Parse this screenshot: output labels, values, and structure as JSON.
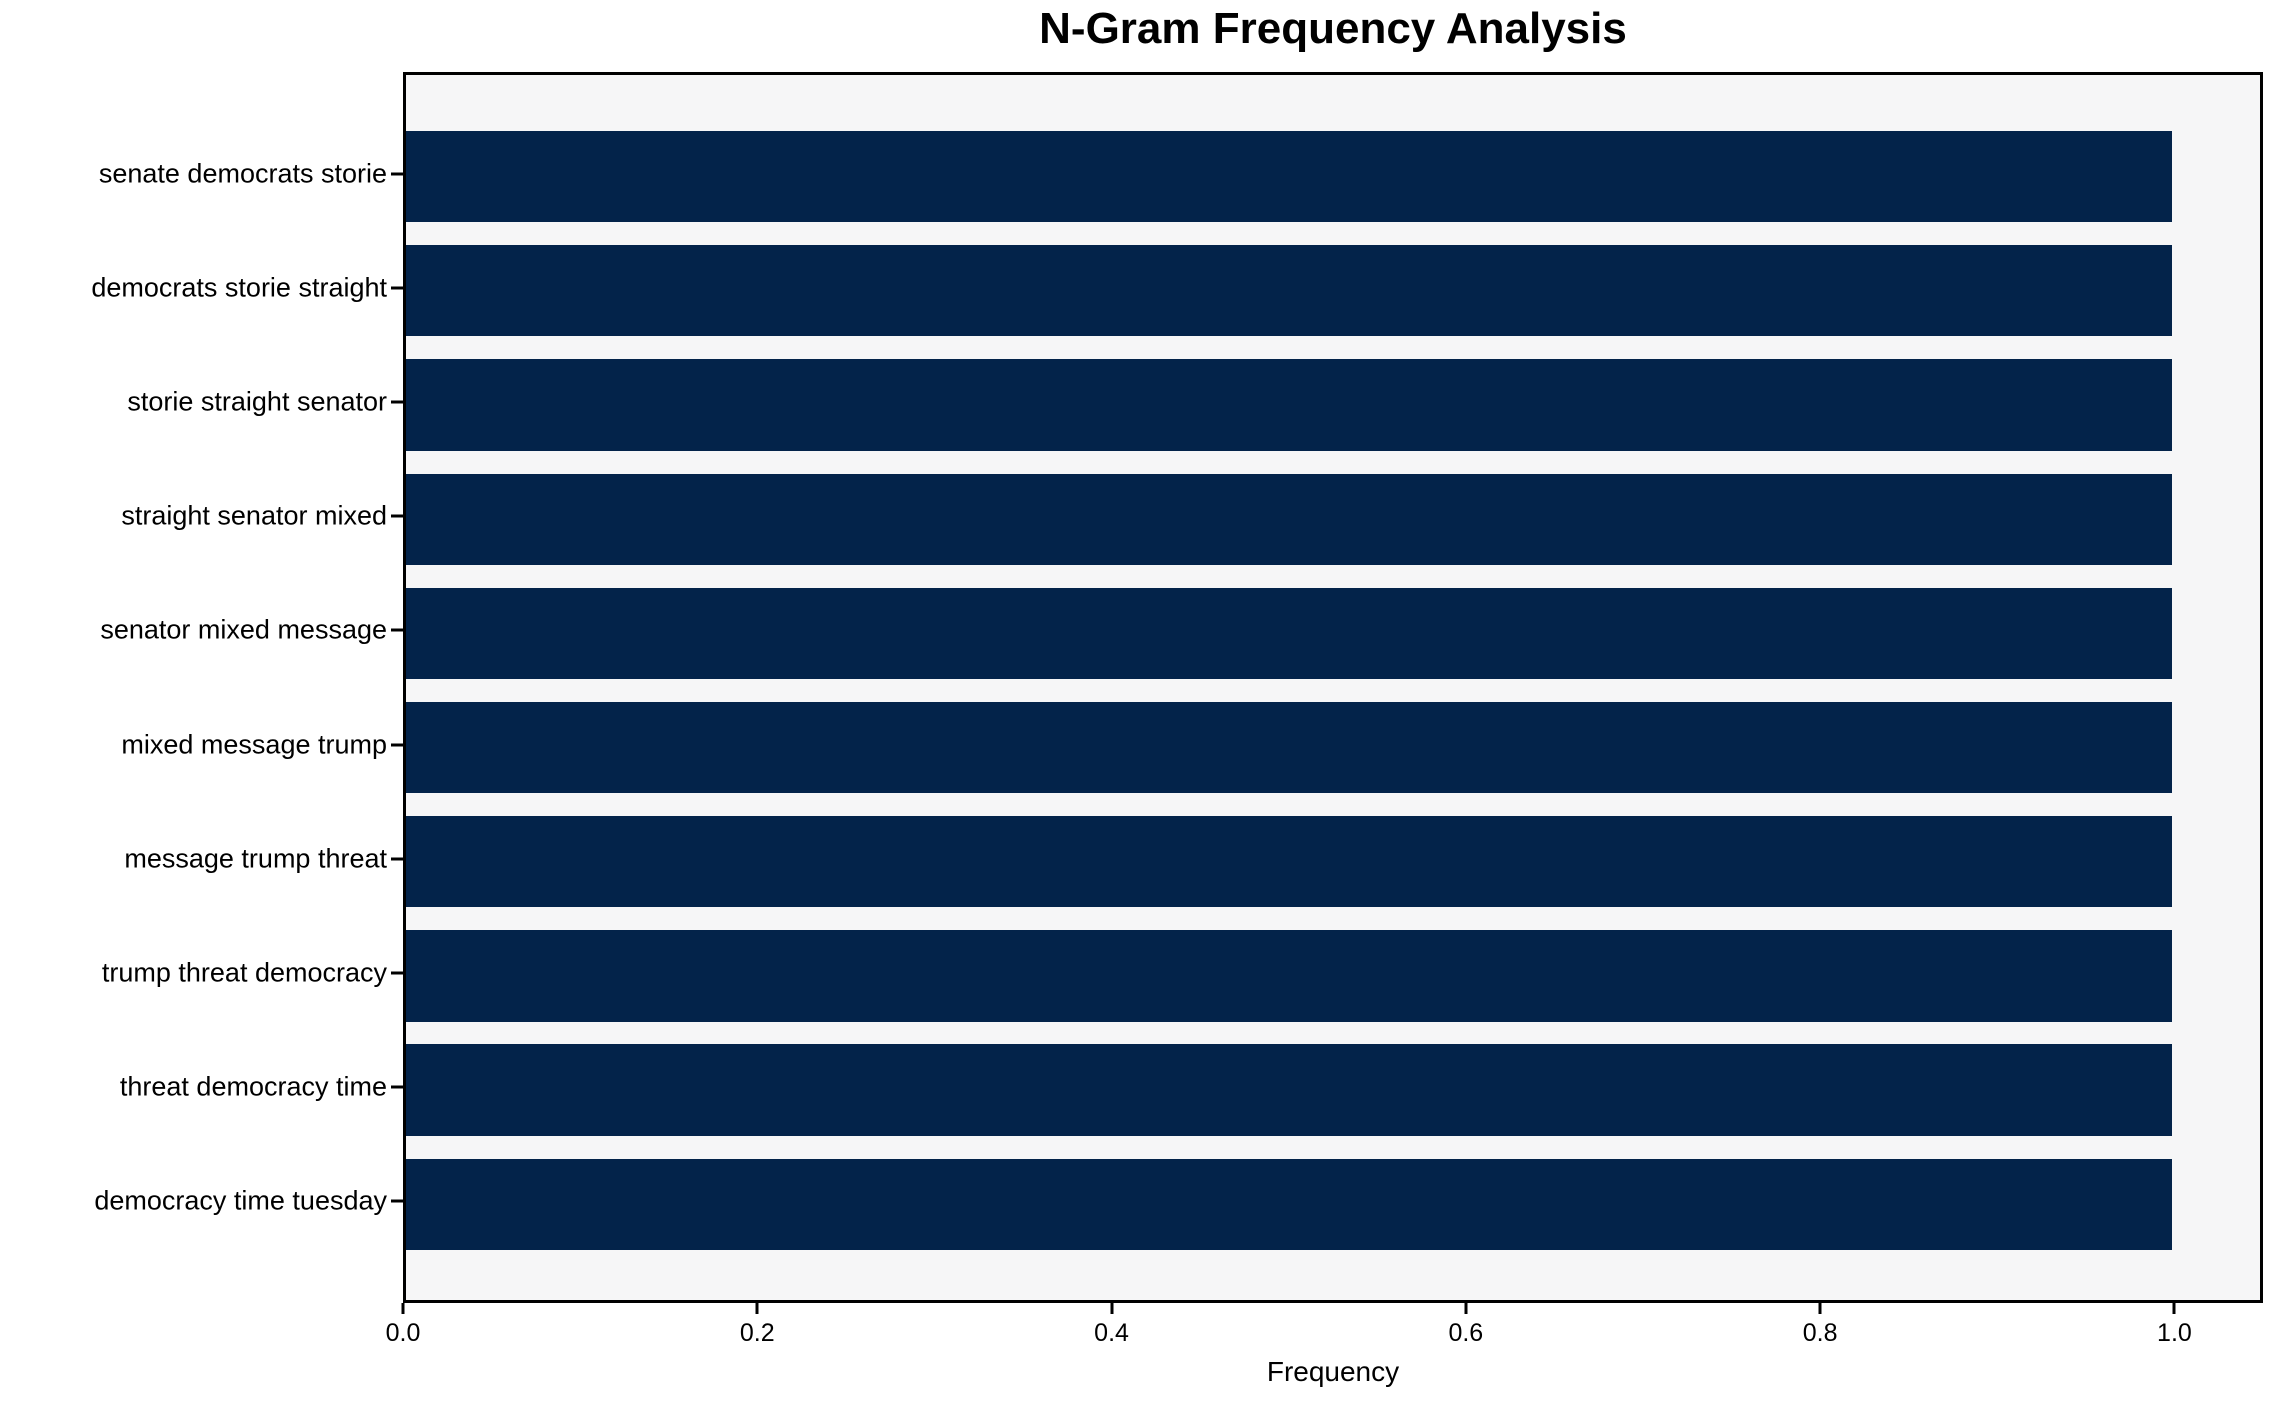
{
  "chart_data": {
    "type": "bar",
    "orientation": "horizontal",
    "title": "N-Gram Frequency Analysis",
    "xlabel": "Frequency",
    "ylabel": "",
    "categories": [
      "senate democrats storie",
      "democrats storie straight",
      "storie straight senator",
      "straight senator mixed",
      "senator mixed message",
      "mixed message trump",
      "message trump threat",
      "trump threat democracy",
      "threat democracy time",
      "democracy time tuesday"
    ],
    "values": [
      1.0,
      1.0,
      1.0,
      1.0,
      1.0,
      1.0,
      1.0,
      1.0,
      1.0,
      1.0
    ],
    "xticks": [
      0.0,
      0.2,
      0.4,
      0.6,
      0.8,
      1.0
    ],
    "xlim": [
      0,
      1.05
    ],
    "grid": false,
    "legend": null,
    "bar_color": "#03234a",
    "plot_bg_color": "#f6f6f7",
    "spine_color": "#000000"
  }
}
